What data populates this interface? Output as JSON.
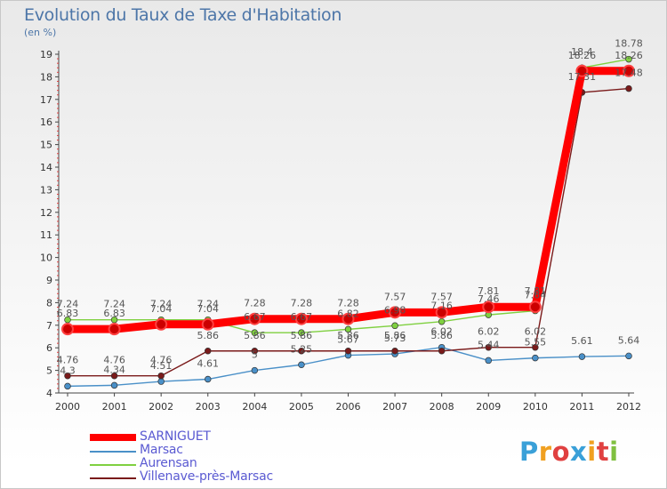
{
  "chart_data": {
    "type": "line",
    "title": "Evolution du Taux de Taxe d'Habitation",
    "subtitle": "(en %)",
    "x": [
      "2000",
      "2001",
      "2002",
      "2003",
      "2004",
      "2005",
      "2006",
      "2007",
      "2008",
      "2009",
      "2010",
      "2011",
      "2012"
    ],
    "ylim": [
      4,
      19
    ],
    "yticks": [
      4,
      5,
      6,
      7,
      8,
      9,
      10,
      11,
      12,
      13,
      14,
      15,
      16,
      17,
      18,
      19
    ],
    "grid": false,
    "legend_position": "bottom-left",
    "series": [
      {
        "name": "SARNIGUET",
        "color": "#ff0000",
        "values": [
          6.83,
          6.83,
          7.04,
          7.04,
          7.28,
          7.28,
          7.28,
          7.57,
          7.57,
          7.81,
          7.81,
          18.26,
          18.26
        ],
        "labels": [
          "6.83",
          "6.83",
          "7.04",
          "7.04",
          "7.28",
          "7.28",
          "7.28",
          "7.57",
          "7.57",
          "7.81",
          "7.81",
          "18.26",
          "18.26"
        ]
      },
      {
        "name": "Marsac",
        "color": "#4a90c8",
        "values": [
          4.3,
          4.34,
          4.51,
          4.61,
          5.0,
          5.25,
          5.67,
          5.73,
          6.02,
          5.44,
          5.55,
          5.61,
          5.64
        ],
        "labels": [
          "4.3",
          "4.34",
          "4.51",
          "4.61",
          "5",
          "5.25",
          "5.67",
          "5.73",
          "6.02",
          "5.44",
          "5.55",
          "5.61",
          "5.64"
        ]
      },
      {
        "name": "Aurensan",
        "color": "#7fd040",
        "values": [
          7.24,
          7.24,
          7.24,
          7.24,
          6.67,
          6.67,
          6.82,
          6.98,
          7.16,
          7.46,
          7.64,
          18.4,
          18.78
        ],
        "labels": [
          "7.24",
          "7.24",
          "7.24",
          "7.24",
          "6.67",
          "6.67",
          "6.82",
          "6.98",
          "7.16",
          "7.46",
          "7.64",
          "18.4",
          "18.78"
        ]
      },
      {
        "name": "Villenave-près-Marsac",
        "color": "#7a1a1a",
        "values": [
          4.76,
          4.76,
          4.76,
          5.86,
          5.86,
          5.86,
          5.86,
          5.86,
          5.86,
          6.02,
          6.02,
          17.31,
          17.48
        ],
        "labels": [
          "4.76",
          "4.76",
          "4.76",
          "5.86",
          "5.86",
          "5.86",
          "5.86",
          "5.86",
          "5.86",
          "6.02",
          "6.02",
          "17.31",
          "17.48"
        ]
      }
    ]
  },
  "logo": {
    "letters": [
      "P",
      "r",
      "o",
      "x",
      "i",
      "t",
      "i"
    ],
    "colors": [
      "#3aa0d8",
      "#f0a020",
      "#e04040",
      "#3aa0d8",
      "#f0a020",
      "#e04040",
      "#80c040"
    ]
  }
}
